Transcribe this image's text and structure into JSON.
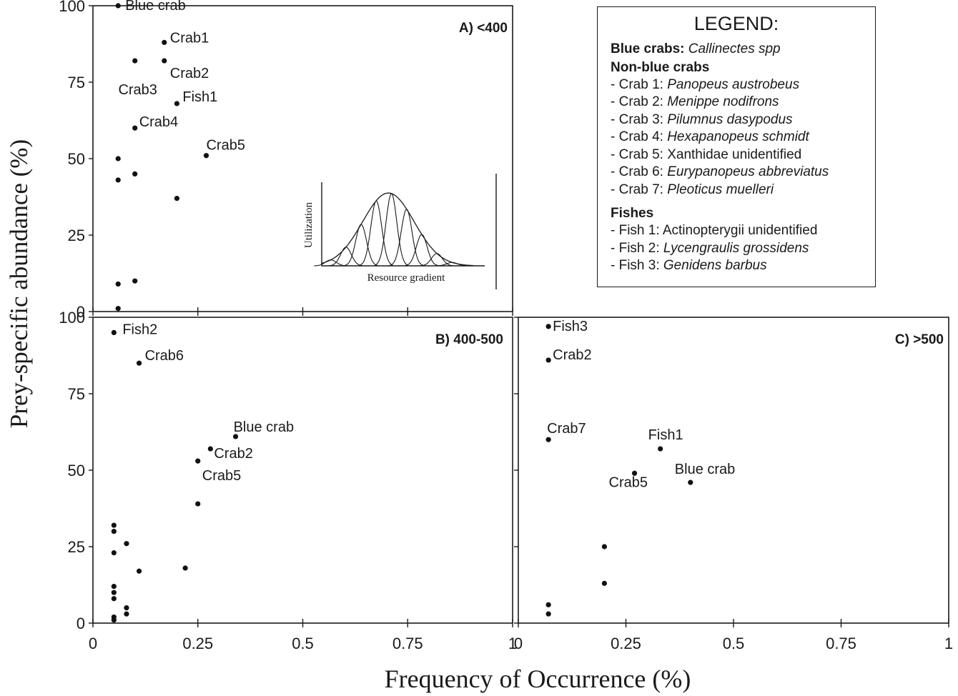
{
  "figure": {
    "ylabel": "Prey-specific abundance (%)",
    "xlabel": "Frequency of Occurrence (%)"
  },
  "inset": {
    "ylabel": "Utilization",
    "xlabel": "Resource gradient"
  },
  "legend": {
    "title": "LEGEND:",
    "blue_crabs": {
      "heading": "Blue crabs:",
      "species": "Callinectes spp"
    },
    "non_blue_heading": "Non-blue crabs",
    "non_blue": [
      {
        "prefix": "- Crab 1: ",
        "species": "Panopeus austrobeus",
        "italic": true
      },
      {
        "prefix": "- Crab 2: ",
        "species": "Menippe nodifrons",
        "italic": true
      },
      {
        "prefix": "- Crab 3: ",
        "species": "Pilumnus dasypodus",
        "italic": true
      },
      {
        "prefix": "- Crab 4: ",
        "species": "Hexapanopeus schmidt",
        "italic": true
      },
      {
        "prefix": "- Crab 5: ",
        "species": "Xanthidae unidentified",
        "italic": false
      },
      {
        "prefix": "- Crab 6: ",
        "species": "Eurypanopeus abbreviatus",
        "italic": true
      },
      {
        "prefix": "- Crab 7: ",
        "species": "Pleoticus muelleri",
        "italic": true
      }
    ],
    "fishes_heading": "Fishes",
    "fishes": [
      {
        "prefix": "- Fish 1: ",
        "species": "Actinopterygii unidentified",
        "italic": false
      },
      {
        "prefix": "- Fish 2: ",
        "species": "Lycengraulis grossidens",
        "italic": true
      },
      {
        "prefix": "- Fish 3: ",
        "species": "Genidens barbus",
        "italic": true
      }
    ]
  },
  "chart_data": [
    {
      "type": "scatter",
      "panel_label": "A) <400",
      "xlim": [
        0,
        1
      ],
      "ylim": [
        0,
        100
      ],
      "yticks": [
        "0",
        "25",
        "50",
        "75",
        "100"
      ],
      "xticks": [],
      "points": [
        {
          "x": 0.06,
          "y": 100,
          "label": "Blue crab"
        },
        {
          "x": 0.17,
          "y": 88,
          "label": "Crab1"
        },
        {
          "x": 0.17,
          "y": 82,
          "label": "Crab2"
        },
        {
          "x": 0.1,
          "y": 82,
          "label": "Crab3"
        },
        {
          "x": 0.2,
          "y": 68,
          "label": "Fish1"
        },
        {
          "x": 0.1,
          "y": 60,
          "label": "Crab4"
        },
        {
          "x": 0.27,
          "y": 51,
          "label": "Crab5"
        },
        {
          "x": 0.06,
          "y": 50,
          "label": ""
        },
        {
          "x": 0.1,
          "y": 45,
          "label": ""
        },
        {
          "x": 0.06,
          "y": 43,
          "label": ""
        },
        {
          "x": 0.2,
          "y": 37,
          "label": ""
        },
        {
          "x": 0.1,
          "y": 10,
          "label": ""
        },
        {
          "x": 0.06,
          "y": 9,
          "label": ""
        },
        {
          "x": 0.06,
          "y": 1,
          "label": ""
        }
      ]
    },
    {
      "type": "scatter",
      "panel_label": "B) 400-500",
      "xlim": [
        0,
        1
      ],
      "ylim": [
        0,
        100
      ],
      "yticks": [
        "0",
        "25",
        "50",
        "75",
        "100"
      ],
      "xticks": [
        "0",
        "0.25",
        "0.5",
        "0.75",
        "1"
      ],
      "points": [
        {
          "x": 0.05,
          "y": 95,
          "label": "Fish2"
        },
        {
          "x": 0.11,
          "y": 85,
          "label": "Crab6"
        },
        {
          "x": 0.34,
          "y": 61,
          "label": "Blue crab"
        },
        {
          "x": 0.28,
          "y": 57,
          "label": "Crab2"
        },
        {
          "x": 0.25,
          "y": 53,
          "label": "Crab5"
        },
        {
          "x": 0.25,
          "y": 39,
          "label": ""
        },
        {
          "x": 0.05,
          "y": 32,
          "label": ""
        },
        {
          "x": 0.05,
          "y": 30,
          "label": ""
        },
        {
          "x": 0.08,
          "y": 26,
          "label": ""
        },
        {
          "x": 0.05,
          "y": 23,
          "label": ""
        },
        {
          "x": 0.22,
          "y": 18,
          "label": ""
        },
        {
          "x": 0.11,
          "y": 17,
          "label": ""
        },
        {
          "x": 0.05,
          "y": 12,
          "label": ""
        },
        {
          "x": 0.05,
          "y": 10,
          "label": ""
        },
        {
          "x": 0.05,
          "y": 8,
          "label": ""
        },
        {
          "x": 0.08,
          "y": 5,
          "label": ""
        },
        {
          "x": 0.08,
          "y": 3,
          "label": ""
        },
        {
          "x": 0.05,
          "y": 2,
          "label": ""
        },
        {
          "x": 0.05,
          "y": 1,
          "label": ""
        }
      ]
    },
    {
      "type": "scatter",
      "panel_label": "C) >500",
      "xlim": [
        0,
        1
      ],
      "ylim": [
        0,
        100
      ],
      "yticks": [],
      "xticks": [
        "0",
        "0.25",
        "0.5",
        "0.75",
        "1"
      ],
      "points": [
        {
          "x": 0.07,
          "y": 97,
          "label": "Fish3"
        },
        {
          "x": 0.07,
          "y": 86,
          "label": "Crab2"
        },
        {
          "x": 0.07,
          "y": 60,
          "label": "Crab7"
        },
        {
          "x": 0.33,
          "y": 57,
          "label": "Fish1"
        },
        {
          "x": 0.27,
          "y": 49,
          "label": "Crab5"
        },
        {
          "x": 0.4,
          "y": 46,
          "label": "Blue crab"
        },
        {
          "x": 0.2,
          "y": 25,
          "label": ""
        },
        {
          "x": 0.2,
          "y": 13,
          "label": ""
        },
        {
          "x": 0.07,
          "y": 6,
          "label": ""
        },
        {
          "x": 0.07,
          "y": 3,
          "label": ""
        }
      ]
    }
  ]
}
